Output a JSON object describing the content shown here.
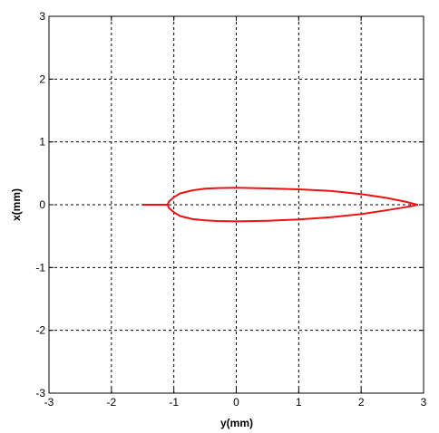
{
  "chart_data": {
    "type": "line",
    "title": "",
    "xlabel": "y(mm)",
    "ylabel": "x(mm)",
    "xlim": [
      -3,
      3
    ],
    "ylim": [
      -3,
      3
    ],
    "xticks": [
      -3,
      -2,
      -1,
      0,
      1,
      2,
      3
    ],
    "yticks": [
      -3,
      -2,
      -1,
      0,
      1,
      2,
      3
    ],
    "grid": true,
    "legend": "none",
    "series": [
      {
        "color": "#ee1111",
        "points": [
          [
            -1.5,
            0.0
          ],
          [
            -1.1,
            0.0
          ],
          [
            -1.08,
            0.05
          ],
          [
            -1.0,
            0.12
          ],
          [
            -0.9,
            0.18
          ],
          [
            -0.7,
            0.23
          ],
          [
            -0.5,
            0.255
          ],
          [
            -0.3,
            0.265
          ],
          [
            0.0,
            0.27
          ],
          [
            0.5,
            0.26
          ],
          [
            1.0,
            0.245
          ],
          [
            1.5,
            0.22
          ],
          [
            2.0,
            0.17
          ],
          [
            2.4,
            0.11
          ],
          [
            2.7,
            0.05
          ],
          [
            2.82,
            0.02
          ],
          [
            2.9,
            0.0
          ],
          [
            2.82,
            -0.02
          ],
          [
            2.7,
            -0.04
          ],
          [
            2.4,
            -0.09
          ],
          [
            2.0,
            -0.15
          ],
          [
            1.5,
            -0.2
          ],
          [
            1.0,
            -0.235
          ],
          [
            0.5,
            -0.255
          ],
          [
            0.0,
            -0.265
          ],
          [
            -0.3,
            -0.26
          ],
          [
            -0.5,
            -0.25
          ],
          [
            -0.7,
            -0.23
          ],
          [
            -0.9,
            -0.18
          ],
          [
            -1.0,
            -0.12
          ],
          [
            -1.08,
            -0.05
          ],
          [
            -1.1,
            0.0
          ]
        ]
      }
    ]
  }
}
